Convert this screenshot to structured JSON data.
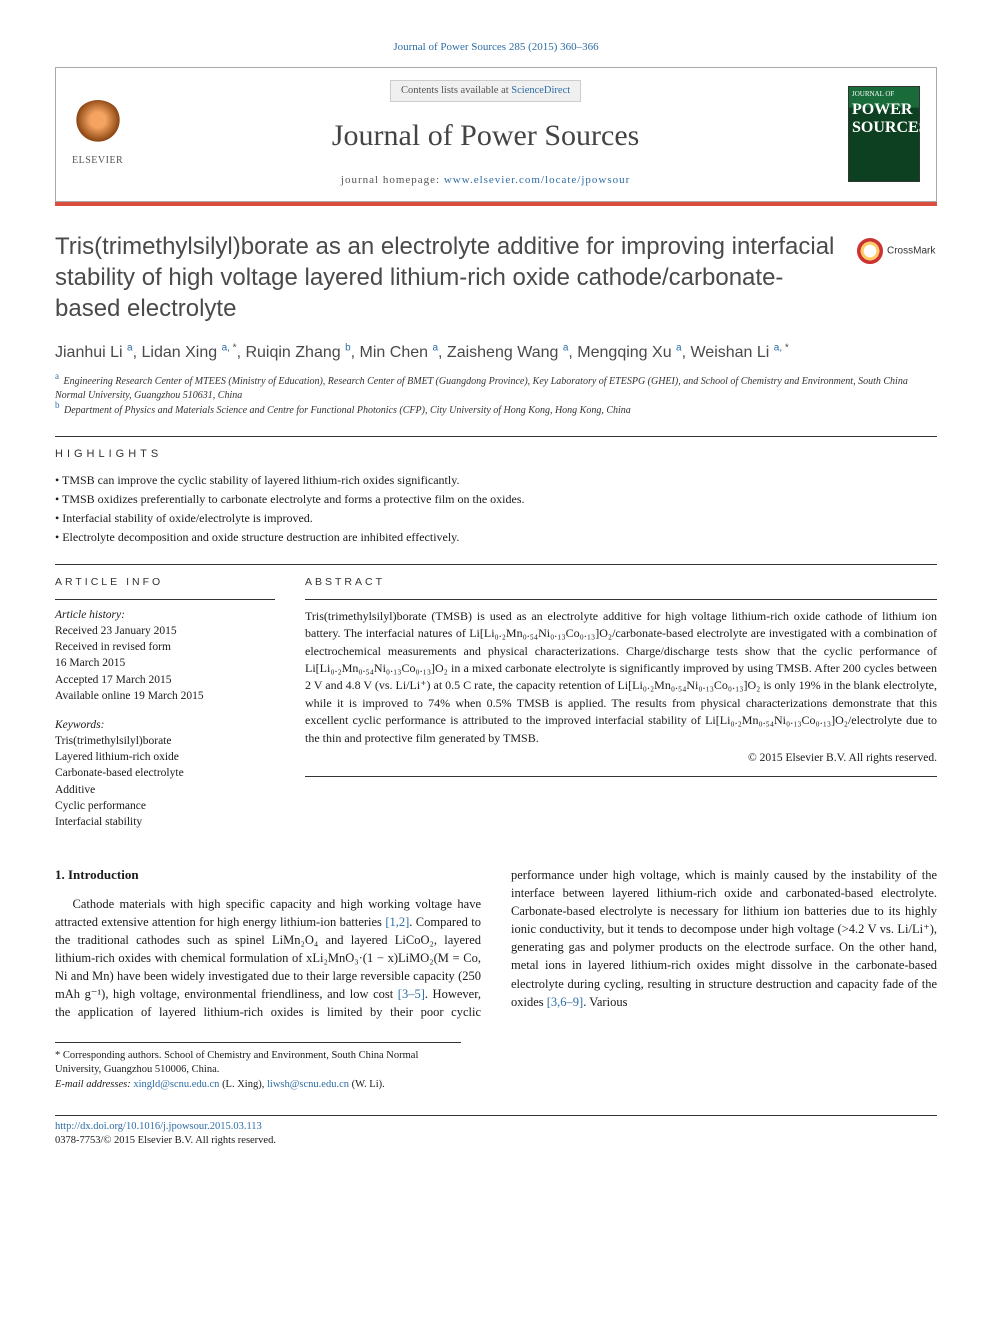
{
  "citation": "Journal of Power Sources 285 (2015) 360–366",
  "header": {
    "contents_prefix": "Contents lists available at ",
    "contents_link": "ScienceDirect",
    "journal_name": "Journal of Power Sources",
    "homepage_prefix": "journal homepage: ",
    "homepage_url": "www.elsevier.com/locate/jpowsour",
    "publisher_label": "ELSEVIER",
    "cover_small": "POWER",
    "cover_big": "SOURCES"
  },
  "colors": {
    "rule_red": "#d94e3f",
    "link_blue": "#2e6da4",
    "elsevier_orange": "#e87722"
  },
  "crossmark": "CrossMark",
  "title": "Tris(trimethylsilyl)borate as an electrolyte additive for improving interfacial stability of high voltage layered lithium-rich oxide cathode/carbonate-based electrolyte",
  "authors_html": "Jianhui Li <sup>a</sup>, Lidan Xing <sup>a,</sup><sup class='ast'> *</sup>, Ruiqin Zhang <sup>b</sup>, Min Chen <sup>a</sup>, Zaisheng Wang <sup>a</sup>, Mengqing Xu <sup>a</sup>, Weishan Li <sup>a,</sup><sup class='ast'> *</sup>",
  "affiliations": [
    {
      "mark": "a",
      "text": "Engineering Research Center of MTEES (Ministry of Education), Research Center of BMET (Guangdong Province), Key Laboratory of ETESPG (GHEI), and School of Chemistry and Environment, South China Normal University, Guangzhou 510631, China"
    },
    {
      "mark": "b",
      "text": "Department of Physics and Materials Science and Centre for Functional Photonics (CFP), City University of Hong Kong, Hong Kong, China"
    }
  ],
  "highlights_label": "HIGHLIGHTS",
  "highlights": [
    "TMSB can improve the cyclic stability of layered lithium-rich oxides significantly.",
    "TMSB oxidizes preferentially to carbonate electrolyte and forms a protective film on the oxides.",
    "Interfacial stability of oxide/electrolyte is improved.",
    "Electrolyte decomposition and oxide structure destruction are inhibited effectively."
  ],
  "article_info_label": "ARTICLE INFO",
  "abstract_label": "ABSTRACT",
  "history_label": "Article history:",
  "history": [
    "Received 23 January 2015",
    "Received in revised form",
    "16 March 2015",
    "Accepted 17 March 2015",
    "Available online 19 March 2015"
  ],
  "keywords_label": "Keywords:",
  "keywords": [
    "Tris(trimethylsilyl)borate",
    "Layered lithium-rich oxide",
    "Carbonate-based electrolyte",
    "Additive",
    "Cyclic performance",
    "Interfacial stability"
  ],
  "abstract": "Tris(trimethylsilyl)borate (TMSB) is used as an electrolyte additive for high voltage lithium-rich oxide cathode of lithium ion battery. The interfacial natures of Li[Li₀.₂Mn₀.₅₄Ni₀.₁₃Co₀.₁₃]O₂/carbonate-based electrolyte are investigated with a combination of electrochemical measurements and physical characterizations. Charge/discharge tests show that the cyclic performance of Li[Li₀.₂Mn₀.₅₄Ni₀.₁₃Co₀.₁₃]O₂ in a mixed carbonate electrolyte is significantly improved by using TMSB. After 200 cycles between 2 V and 4.8 V (vs. Li/Li⁺) at 0.5 C rate, the capacity retention of Li[Li₀.₂Mn₀.₅₄Ni₀.₁₃Co₀.₁₃]O₂ is only 19% in the blank electrolyte, while it is improved to 74% when 0.5% TMSB is applied. The results from physical characterizations demonstrate that this excellent cyclic performance is attributed to the improved interfacial stability of Li[Li₀.₂Mn₀.₅₄Ni₀.₁₃Co₀.₁₃]O₂/electrolyte due to the thin and protective film generated by TMSB.",
  "copyright": "© 2015 Elsevier B.V. All rights reserved.",
  "intro_heading": "1.  Introduction",
  "intro_p1_pre": "Cathode materials with high specific capacity and high working voltage have attracted extensive attention for high energy lithium-ion batteries ",
  "intro_cite1": "[1,2]",
  "intro_p1_post": ". Compared to the traditional cathodes such as spinel LiMn₂O₄ and layered LiCoO₂, layered lithium-rich oxides with chemical formulation of xLi₂MnO₃·(1 − x)LiMO₂(M = Co, Ni and Mn) have been widely investigated due to their large reversible",
  "intro_p2_pre": "capacity (250 mAh g⁻¹), high voltage, environmental friendliness, and low cost ",
  "intro_cite2": "[3–5]",
  "intro_p2_mid": ". However, the application of layered lithium-rich oxides is limited by their poor cyclic performance under high voltage, which is mainly caused by the instability of the interface between layered lithium-rich oxide and carbonated-based electrolyte. Carbonate-based electrolyte is necessary for lithium ion batteries due to its highly ionic conductivity, but it tends to decompose under high voltage (>4.2 V vs. Li/Li⁺), generating gas and polymer products on the electrode surface. On the other hand, metal ions in layered lithium-rich oxides might dissolve in the carbonate-based electrolyte during cycling, resulting in structure destruction and capacity fade of the oxides ",
  "intro_cite3": "[3,6–9]",
  "intro_p2_post": ". Various",
  "footnote_corr": "* Corresponding authors. School of Chemistry and Environment, South China Normal University, Guangzhou 510006, China.",
  "footnote_email_label": "E-mail addresses: ",
  "footnote_email1": "xingld@scnu.edu.cn",
  "footnote_email1_who": " (L. Xing), ",
  "footnote_email2": "liwsh@scnu.edu.cn",
  "footnote_email2_who": " (W. Li).",
  "doi": "http://dx.doi.org/10.1016/j.jpowsour.2015.03.113",
  "issn_line": "0378-7753/© 2015 Elsevier B.V. All rights reserved."
}
